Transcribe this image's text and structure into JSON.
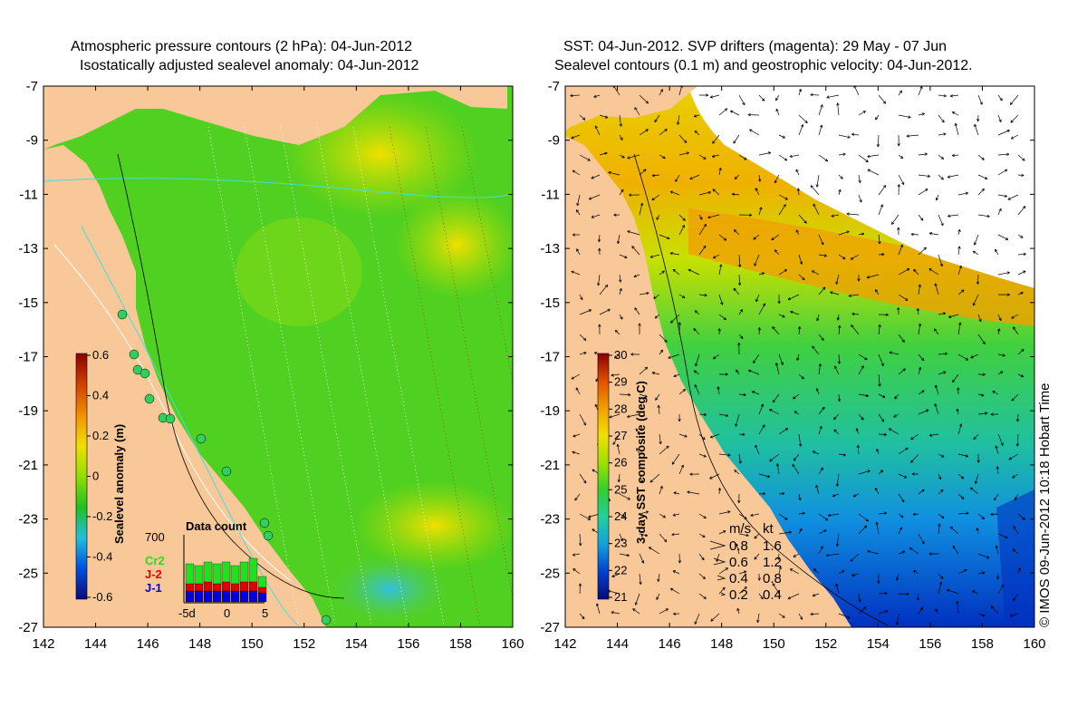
{
  "left_panel": {
    "title_line1": "Atmospheric pressure contours (2 hPa): 04-Jun-2012",
    "title_line2": "Isostatically adjusted sealevel anomaly: 04-Jun-2012",
    "colorbar": {
      "label": "Sealevel anomaly (m)",
      "ticks": [
        "0.6",
        "0.4",
        "0.2",
        "0",
        "-0.2",
        "-0.4",
        "-0.6"
      ],
      "min": -0.6,
      "max": 0.6,
      "colors": [
        "#0a0a7a",
        "#0050e0",
        "#20c0e0",
        "#20c020",
        "#90e000",
        "#f0e000",
        "#f09000",
        "#d04000",
        "#8a0000"
      ]
    },
    "data_count": {
      "title": "Data count",
      "ymax_label": "700",
      "x_ticks": [
        "-5d",
        "0",
        "5"
      ],
      "legend": [
        "Cr2",
        "J-2",
        "J-1"
      ],
      "legend_colors": [
        "#20e020",
        "#e00000",
        "#0000e0"
      ]
    }
  },
  "right_panel": {
    "title_line1": "SST: 04-Jun-2012. SVP drifters (magenta): 29 May - 07 Jun",
    "title_line2": "Sealevel contours (0.1 m) and geostrophic velocity: 04-Jun-2012.",
    "colorbar": {
      "label": "3-day SST composite (deg C)",
      "ticks": [
        "30",
        "29",
        "28",
        "27",
        "26",
        "25",
        "24",
        "23",
        "22",
        "21"
      ],
      "min": 21,
      "max": 30,
      "colors": [
        "#0a0a7a",
        "#0040d0",
        "#10a0e0",
        "#20d0a0",
        "#30d030",
        "#a0e000",
        "#f0e000",
        "#f0a000",
        "#e05000",
        "#8a0000"
      ]
    },
    "velocity_legend": {
      "header_ms": "m/s",
      "header_kt": "kt",
      "rows": [
        {
          "ms": "0.8",
          "kt": "1.6"
        },
        {
          "ms": "0.6",
          "kt": "1.2"
        },
        {
          "ms": "0.4",
          "kt": "0.8"
        },
        {
          "ms": "0.2",
          "kt": "0.4"
        }
      ]
    }
  },
  "axes": {
    "lon_ticks": [
      "142",
      "144",
      "146",
      "148",
      "150",
      "152",
      "154",
      "156",
      "158",
      "160"
    ],
    "lat_ticks": [
      "-7",
      "-9",
      "-11",
      "-13",
      "-15",
      "-17",
      "-19",
      "-21",
      "-23",
      "-25",
      "-27"
    ],
    "lon_range": [
      142,
      160
    ],
    "lat_range": [
      -27,
      -7
    ]
  },
  "credit": "© IMOS 09-Jun-2012 10:18 Hobart Time",
  "colors": {
    "land": "#f8c898",
    "cloud": "#ffffff"
  }
}
